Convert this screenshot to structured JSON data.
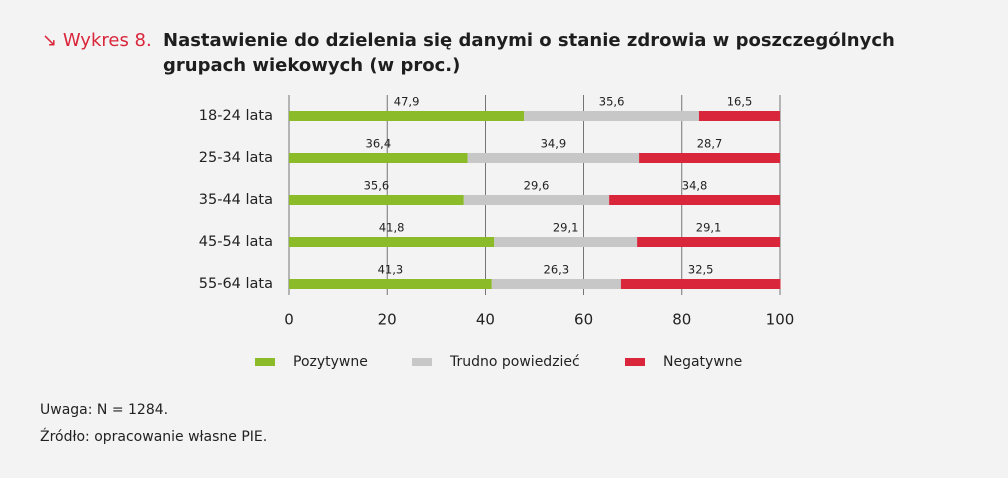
{
  "chart_data": {
    "type": "stacked_barh",
    "figure_label": "Wykres 8.",
    "title": "Nastawienie do dzielenia się danymi o stanie zdrowia w poszczególnych grupach wiekowych (w proc.)",
    "categories": [
      "18-24 lata",
      "25-34 lata",
      "35-44 lata",
      "45-54 lata",
      "55-64 lata"
    ],
    "series": [
      {
        "name": "Pozytywne",
        "color": "#8cbb2a",
        "values": [
          47.9,
          36.4,
          35.6,
          41.8,
          41.3
        ],
        "value_labels": [
          "47,9",
          "36,4",
          "35,6",
          "41,8",
          "41,3"
        ]
      },
      {
        "name": "Trudno powiedzieć",
        "color": "#c8c7c8",
        "values": [
          35.6,
          34.9,
          29.6,
          29.1,
          26.3
        ],
        "value_labels": [
          "35,6",
          "34,9",
          "29,6",
          "29,1",
          "26,3"
        ]
      },
      {
        "name": "Negatywne",
        "color": "#d9263a",
        "values": [
          16.5,
          28.7,
          34.8,
          29.1,
          32.5
        ],
        "value_labels": [
          "16,5",
          "28,7",
          "34,8",
          "29,1",
          "32,5"
        ]
      }
    ],
    "xlim": [
      0,
      100
    ],
    "xticks": [
      0,
      20,
      40,
      60,
      80,
      100
    ],
    "grid": true,
    "legend": "bottom",
    "notes": [
      "Uwaga: N = 1284.",
      "Źródło: opracowanie własne PIE."
    ]
  }
}
